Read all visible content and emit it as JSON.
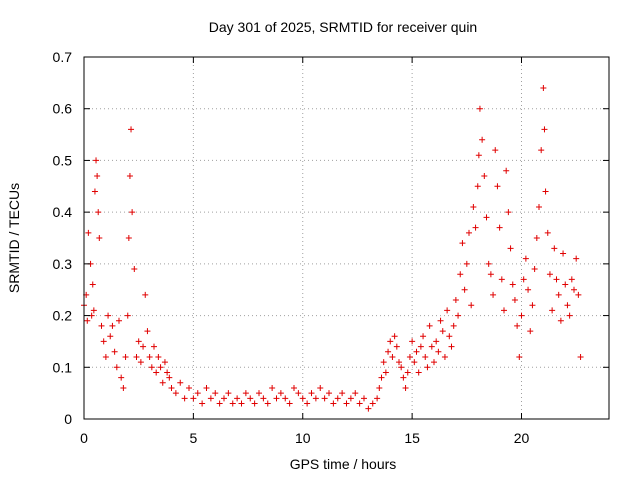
{
  "chart_data": {
    "type": "scatter",
    "title": "Day 301 of 2025, SRMTID for receiver quin",
    "xlabel": "GPS time / hours",
    "ylabel": "SRMTID / TECUs",
    "xlim": [
      0,
      24
    ],
    "ylim": [
      0,
      0.7
    ],
    "xticks": [
      0,
      5,
      10,
      15,
      20
    ],
    "xtick_labels": [
      "0",
      "5",
      "10",
      "15",
      "20"
    ],
    "yticks": [
      0,
      0.1,
      0.2,
      0.3,
      0.4,
      0.5,
      0.6,
      0.7
    ],
    "ytick_labels": [
      "0",
      "0.1",
      "0.2",
      "0.3",
      "0.4",
      "0.5",
      "0.6",
      "0.7"
    ],
    "grid": true,
    "marker": "+",
    "color": "#e00000",
    "series": [
      {
        "name": "SRMTID",
        "x": [
          0.0,
          0.1,
          0.15,
          0.2,
          0.3,
          0.35,
          0.4,
          0.45,
          0.5,
          0.55,
          0.6,
          0.65,
          0.7,
          0.8,
          0.9,
          1.0,
          1.1,
          1.2,
          1.3,
          1.4,
          1.5,
          1.6,
          1.7,
          1.8,
          1.9,
          2.0,
          2.05,
          2.1,
          2.15,
          2.2,
          2.3,
          2.4,
          2.5,
          2.6,
          2.7,
          2.8,
          2.9,
          3.0,
          3.1,
          3.2,
          3.3,
          3.4,
          3.5,
          3.6,
          3.7,
          3.8,
          3.9,
          4.0,
          4.2,
          4.4,
          4.6,
          4.8,
          5.0,
          5.2,
          5.4,
          5.6,
          5.8,
          6.0,
          6.2,
          6.4,
          6.6,
          6.8,
          7.0,
          7.2,
          7.4,
          7.6,
          7.8,
          8.0,
          8.2,
          8.4,
          8.6,
          8.8,
          9.0,
          9.2,
          9.4,
          9.6,
          9.8,
          10.0,
          10.2,
          10.4,
          10.6,
          10.8,
          11.0,
          11.2,
          11.4,
          11.6,
          11.8,
          12.0,
          12.2,
          12.4,
          12.6,
          12.8,
          13.0,
          13.2,
          13.4,
          13.5,
          13.6,
          13.7,
          13.8,
          13.9,
          14.0,
          14.1,
          14.2,
          14.3,
          14.4,
          14.5,
          14.6,
          14.7,
          14.8,
          14.9,
          15.0,
          15.1,
          15.2,
          15.3,
          15.4,
          15.5,
          15.6,
          15.7,
          15.8,
          15.9,
          16.0,
          16.1,
          16.2,
          16.3,
          16.4,
          16.5,
          16.6,
          16.7,
          16.8,
          16.9,
          17.0,
          17.1,
          17.2,
          17.3,
          17.4,
          17.5,
          17.6,
          17.7,
          17.8,
          17.9,
          18.0,
          18.05,
          18.1,
          18.2,
          18.3,
          18.4,
          18.5,
          18.6,
          18.7,
          18.8,
          18.9,
          19.0,
          19.1,
          19.2,
          19.3,
          19.4,
          19.5,
          19.6,
          19.7,
          19.8,
          19.9,
          20.0,
          20.1,
          20.2,
          20.3,
          20.4,
          20.5,
          20.6,
          20.7,
          20.8,
          20.9,
          21.0,
          21.05,
          21.1,
          21.2,
          21.3,
          21.4,
          21.5,
          21.6,
          21.7,
          21.8,
          21.9,
          22.0,
          22.1,
          22.2,
          22.3,
          22.4,
          22.5,
          22.6,
          22.7
        ],
        "y": [
          0.22,
          0.24,
          0.19,
          0.36,
          0.3,
          0.2,
          0.26,
          0.21,
          0.44,
          0.5,
          0.47,
          0.4,
          0.35,
          0.18,
          0.15,
          0.12,
          0.2,
          0.16,
          0.18,
          0.13,
          0.1,
          0.19,
          0.08,
          0.06,
          0.12,
          0.2,
          0.35,
          0.47,
          0.56,
          0.4,
          0.29,
          0.12,
          0.15,
          0.11,
          0.14,
          0.24,
          0.17,
          0.12,
          0.1,
          0.14,
          0.09,
          0.12,
          0.1,
          0.07,
          0.11,
          0.09,
          0.08,
          0.06,
          0.05,
          0.07,
          0.04,
          0.06,
          0.04,
          0.05,
          0.03,
          0.06,
          0.04,
          0.05,
          0.03,
          0.04,
          0.05,
          0.03,
          0.04,
          0.03,
          0.05,
          0.04,
          0.03,
          0.05,
          0.04,
          0.03,
          0.06,
          0.04,
          0.05,
          0.04,
          0.03,
          0.06,
          0.05,
          0.04,
          0.03,
          0.05,
          0.04,
          0.06,
          0.04,
          0.05,
          0.03,
          0.04,
          0.05,
          0.03,
          0.04,
          0.05,
          0.03,
          0.04,
          0.02,
          0.03,
          0.04,
          0.06,
          0.08,
          0.11,
          0.09,
          0.13,
          0.15,
          0.12,
          0.16,
          0.14,
          0.11,
          0.1,
          0.08,
          0.06,
          0.09,
          0.12,
          0.15,
          0.11,
          0.13,
          0.09,
          0.14,
          0.16,
          0.12,
          0.1,
          0.18,
          0.14,
          0.11,
          0.15,
          0.13,
          0.19,
          0.17,
          0.12,
          0.21,
          0.16,
          0.14,
          0.18,
          0.23,
          0.2,
          0.28,
          0.34,
          0.25,
          0.3,
          0.36,
          0.22,
          0.41,
          0.37,
          0.45,
          0.51,
          0.6,
          0.54,
          0.47,
          0.39,
          0.3,
          0.28,
          0.24,
          0.52,
          0.45,
          0.37,
          0.27,
          0.21,
          0.48,
          0.4,
          0.33,
          0.26,
          0.23,
          0.18,
          0.12,
          0.2,
          0.27,
          0.31,
          0.25,
          0.17,
          0.22,
          0.29,
          0.35,
          0.41,
          0.52,
          0.64,
          0.56,
          0.44,
          0.36,
          0.28,
          0.21,
          0.33,
          0.27,
          0.24,
          0.19,
          0.32,
          0.26,
          0.22,
          0.2,
          0.27,
          0.25,
          0.31,
          0.24,
          0.12
        ]
      }
    ]
  }
}
